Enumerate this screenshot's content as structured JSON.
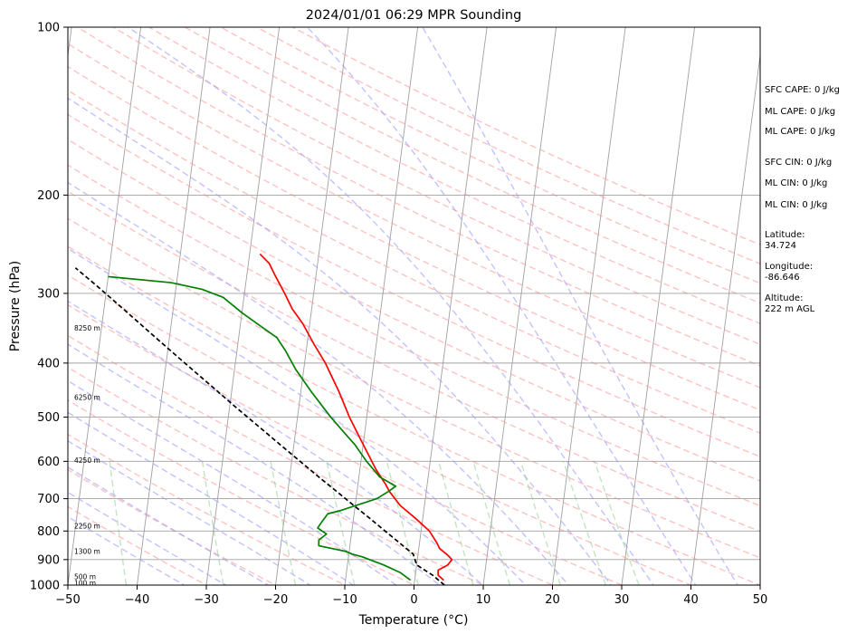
{
  "chart_data": {
    "type": "line",
    "subtype": "skew-t log-p sounding",
    "title": "2024/01/01 06:29 MPR Sounding",
    "xlabel": "Temperature (°C)",
    "ylabel": "Pressure (hPa)",
    "xlim": [
      -50,
      50
    ],
    "ylim": [
      1000,
      100
    ],
    "y_scale": "log",
    "x_ticks": [
      "−50",
      "−40",
      "−30",
      "−20",
      "−10",
      "0",
      "10",
      "20",
      "30",
      "40",
      "50"
    ],
    "y_ticks": [
      {
        "p": 100,
        "label": "100"
      },
      {
        "p": 200,
        "label": "200"
      },
      {
        "p": 300,
        "label": "300"
      },
      {
        "p": 400,
        "label": "400"
      },
      {
        "p": 500,
        "label": "500"
      },
      {
        "p": 600,
        "label": "600"
      },
      {
        "p": 700,
        "label": "700"
      },
      {
        "p": 800,
        "label": "800"
      },
      {
        "p": 900,
        "label": "900"
      },
      {
        "p": 1000,
        "label": "1000"
      }
    ],
    "grid": true,
    "colors": {
      "temperature": "#ff0000",
      "dewpoint": "#008000",
      "parcel": "#000000",
      "dry_adiabats": "#ff9999",
      "moist_adiabats": "#9999ff",
      "mixing_ratio": "#88cc88",
      "isotherms": "#a0a0a0",
      "isobars": "#a0a0a0"
    },
    "series": [
      {
        "key": "temperature",
        "p": [
          980,
          960,
          940,
          920,
          900,
          880,
          860,
          840,
          800,
          760,
          720,
          680,
          660,
          620,
          580,
          540,
          500,
          450,
          400,
          370,
          340,
          320,
          300,
          280,
          265,
          255
        ],
        "t": [
          4.2,
          3.3,
          3.2,
          4.5,
          5.0,
          4.1,
          3.0,
          2.5,
          1.2,
          -1.0,
          -3.5,
          -5.3,
          -6.0,
          -7.7,
          -9.2,
          -10.8,
          -12.5,
          -14.5,
          -17.0,
          -19.0,
          -21.0,
          -22.8,
          -24.2,
          -25.8,
          -27.0,
          -28.5
        ]
      },
      {
        "key": "dewpoint",
        "p": [
          980,
          950,
          920,
          890,
          880,
          870,
          850,
          830,
          810,
          790,
          770,
          745,
          735,
          700,
          680,
          665,
          640,
          600,
          560,
          540,
          500,
          450,
          410,
          380,
          360,
          345,
          325,
          305,
          295,
          287,
          280
        ],
        "t": [
          -0.6,
          -2.2,
          -4.8,
          -8.0,
          -9.5,
          -10.5,
          -14.5,
          -14.6,
          -13.6,
          -15.0,
          -14.5,
          -13.8,
          -12.0,
          -7.0,
          -5.5,
          -4.5,
          -7.0,
          -9.2,
          -11.2,
          -12.5,
          -15.2,
          -18.5,
          -21.2,
          -23.0,
          -24.5,
          -26.8,
          -30.0,
          -33.0,
          -36.2,
          -40.8,
          -50.0
        ]
      },
      {
        "key": "parcel",
        "p": [
          1000,
          960,
          920,
          880,
          840,
          800,
          760,
          720,
          680,
          640,
          600,
          560,
          520,
          480,
          440,
          400,
          360,
          320,
          290,
          270
        ],
        "t": [
          4.4,
          2.5,
          0.0,
          -0.7,
          -2.9,
          -5.2,
          -7.6,
          -10.2,
          -12.9,
          -15.8,
          -18.8,
          -22.0,
          -25.4,
          -29.1,
          -33.0,
          -37.3,
          -42.0,
          -47.2,
          -51.6,
          -54.9
        ]
      }
    ],
    "height_labels": [
      {
        "p": 990,
        "label": "100 m"
      },
      {
        "p": 965,
        "label": "500 m"
      },
      {
        "p": 870,
        "label": "1300 m"
      },
      {
        "p": 783,
        "label": "2250 m"
      },
      {
        "p": 597,
        "label": "4250 m"
      },
      {
        "p": 460,
        "label": "6250 m"
      },
      {
        "p": 346,
        "label": "8250 m"
      }
    ],
    "annotations": [
      "SFC CAPE: 0 J/kg",
      "ML CAPE: 0 J/kg",
      "ML CAPE: 0 J/kg",
      "SFC CIN: 0 J/kg",
      "ML CIN: 0 J/kg",
      "ML CIN: 0 J/kg",
      "Latitude:",
      "34.724",
      "Longitude:",
      "-86.646",
      "Altitude:",
      "222 m AGL"
    ]
  }
}
